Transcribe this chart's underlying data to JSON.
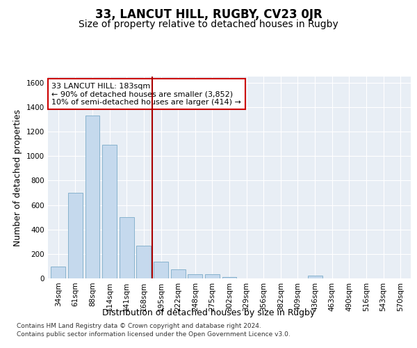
{
  "title": "33, LANCUT HILL, RUGBY, CV23 0JR",
  "subtitle": "Size of property relative to detached houses in Rugby",
  "xlabel": "Distribution of detached houses by size in Rugby",
  "ylabel": "Number of detached properties",
  "categories": [
    "34sqm",
    "61sqm",
    "88sqm",
    "114sqm",
    "141sqm",
    "168sqm",
    "195sqm",
    "222sqm",
    "248sqm",
    "275sqm",
    "302sqm",
    "329sqm",
    "356sqm",
    "382sqm",
    "409sqm",
    "436sqm",
    "463sqm",
    "490sqm",
    "516sqm",
    "543sqm",
    "570sqm"
  ],
  "values": [
    95,
    700,
    1330,
    1090,
    500,
    270,
    135,
    75,
    35,
    35,
    10,
    0,
    0,
    0,
    0,
    20,
    0,
    0,
    0,
    0,
    0
  ],
  "bar_color": "#c5d9ed",
  "bar_edge_color": "#7aaac8",
  "vline_x": 6.0,
  "vline_color": "#aa0000",
  "annotation_text": "33 LANCUT HILL: 183sqm\n← 90% of detached houses are smaller (3,852)\n10% of semi-detached houses are larger (414) →",
  "annotation_box_color": "#ffffff",
  "annotation_box_edge": "#cc0000",
  "plot_bg_color": "#e8eef5",
  "ylim": [
    0,
    1650
  ],
  "yticks": [
    0,
    200,
    400,
    600,
    800,
    1000,
    1200,
    1400,
    1600
  ],
  "footer_line1": "Contains HM Land Registry data © Crown copyright and database right 2024.",
  "footer_line2": "Contains public sector information licensed under the Open Government Licence v3.0.",
  "title_fontsize": 12,
  "subtitle_fontsize": 10,
  "tick_fontsize": 7.5,
  "ylabel_fontsize": 9,
  "xlabel_fontsize": 9,
  "annotation_fontsize": 8
}
